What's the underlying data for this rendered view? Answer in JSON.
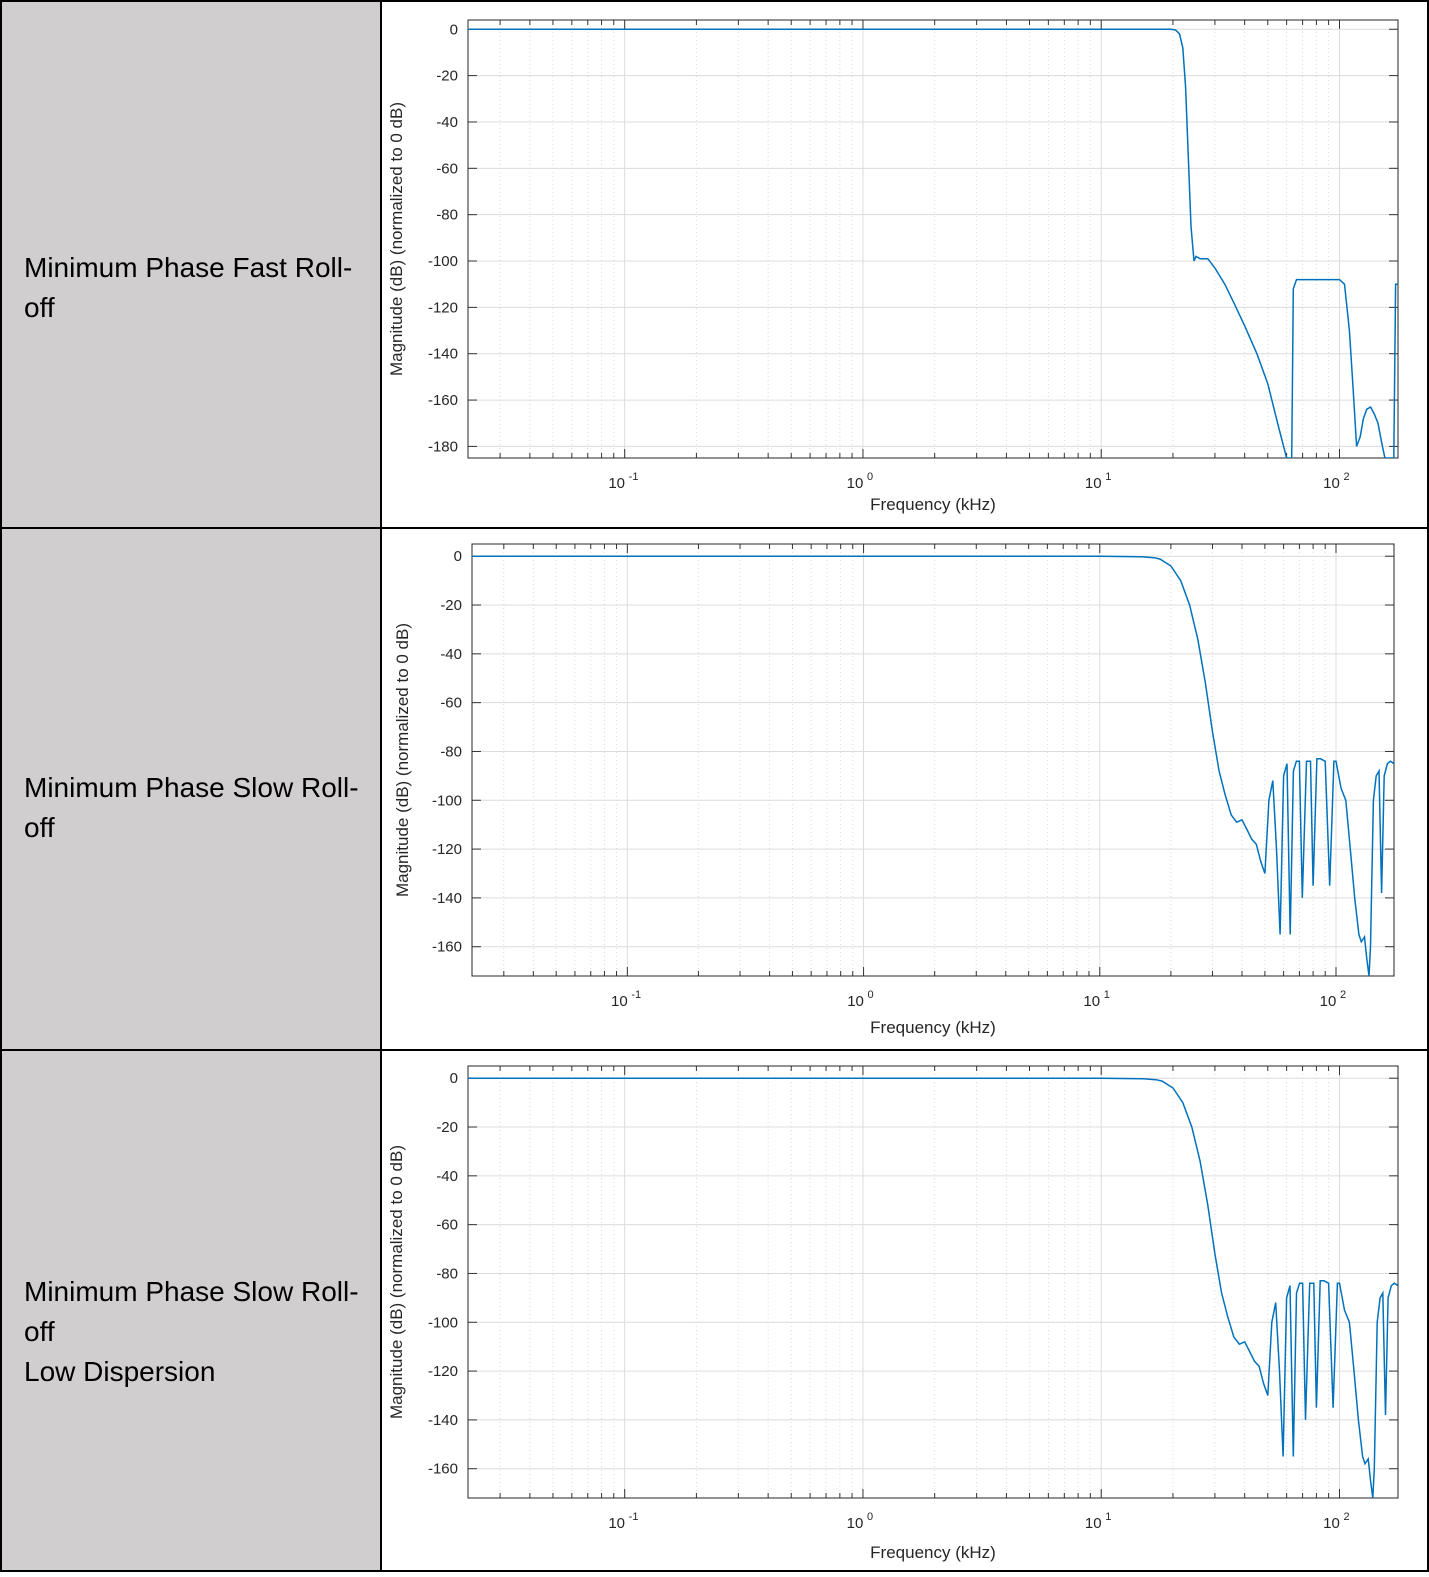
{
  "rows": [
    {
      "label_lines": [
        "Minimum Phase Fast Roll-off"
      ]
    },
    {
      "label_lines": [
        "Minimum Phase Slow Roll-off"
      ]
    },
    {
      "label_lines": [
        "Minimum Phase Slow Roll-off",
        "Low Dispersion"
      ]
    }
  ],
  "chart_data": [
    {
      "type": "line",
      "xlabel": "Frequency (kHz)",
      "ylabel": "Magnitude (dB) (normalized to 0 dB)",
      "xscale": "log",
      "xlim": [
        0.022,
        176
      ],
      "ylim": [
        -185,
        4
      ],
      "yticks": [
        0,
        -20,
        -40,
        -60,
        -80,
        -100,
        -120,
        -140,
        -160,
        -180
      ],
      "xticks": [
        0.1,
        1,
        10,
        100
      ],
      "xtick_labels": [
        {
          "base": "10",
          "exp": "-1"
        },
        {
          "base": "10",
          "exp": "0"
        },
        {
          "base": "10",
          "exp": "1"
        },
        {
          "base": "10",
          "exp": "2"
        }
      ],
      "grid": true,
      "color": "#0072BD",
      "series": [
        {
          "x": [
            0.022,
            1,
            10,
            15,
            18,
            19.5,
            20.5,
            21.3,
            22,
            22.6,
            23.2,
            23.8,
            24.5,
            25,
            26,
            28,
            30,
            33,
            36,
            40,
            45,
            50,
            55,
            60,
            63,
            63.5,
            64,
            66,
            70,
            73,
            76,
            80,
            83,
            87,
            90,
            94,
            97,
            100,
            105,
            110,
            114,
            118,
            122,
            126,
            130,
            135,
            140,
            145,
            150,
            155,
            160,
            165,
            169,
            172,
            176
          ],
          "y": [
            0,
            0,
            0,
            0,
            0,
            0,
            -0.3,
            -2,
            -8,
            -25,
            -55,
            -85,
            -100,
            -98,
            -99,
            -99,
            -103,
            -110,
            -118,
            -128,
            -140,
            -153,
            -170,
            -185,
            -185,
            -150,
            -112,
            -108,
            -108,
            -108,
            -108,
            -108,
            -108,
            -108,
            -108,
            -108,
            -108,
            -108,
            -110,
            -130,
            -155,
            -180,
            -176,
            -168,
            -164,
            -163,
            -166,
            -170,
            -178,
            -185,
            -185,
            -185,
            -185,
            -110,
            -110
          ]
        }
      ]
    },
    {
      "type": "line",
      "xlabel": "Frequency (kHz)",
      "ylabel": "Magnitude (dB) (normalized to 0 dB)",
      "xscale": "log",
      "xlim": [
        0.022,
        176
      ],
      "ylim": [
        -172,
        5
      ],
      "yticks": [
        0,
        -20,
        -40,
        -60,
        -80,
        -100,
        -120,
        -140,
        -160
      ],
      "xticks": [
        0.1,
        1,
        10,
        100
      ],
      "xtick_labels": [
        {
          "base": "10",
          "exp": "-1"
        },
        {
          "base": "10",
          "exp": "0"
        },
        {
          "base": "10",
          "exp": "1"
        },
        {
          "base": "10",
          "exp": "2"
        }
      ],
      "grid": true,
      "color": "#0072BD",
      "series": [
        {
          "x": [
            0.022,
            1,
            10,
            15,
            17,
            18,
            20,
            22,
            24,
            26,
            28,
            30,
            32,
            34,
            35,
            36,
            38,
            40,
            42,
            44,
            46,
            48,
            50,
            52,
            54,
            56,
            58,
            60,
            62,
            64,
            66,
            68,
            70,
            72,
            75,
            78,
            80,
            83,
            86,
            90,
            94,
            98,
            100,
            105,
            110,
            115,
            120,
            125,
            128,
            132,
            135,
            138,
            140,
            144,
            148,
            152,
            156,
            160,
            165,
            170,
            176
          ],
          "y": [
            0,
            0,
            0,
            -0.2,
            -0.6,
            -1.2,
            -4,
            -10,
            -20,
            -34,
            -52,
            -72,
            -88,
            -98,
            -102,
            -106,
            -109,
            -108,
            -112,
            -116,
            -118,
            -125,
            -130,
            -100,
            -92,
            -120,
            -155,
            -90,
            -85,
            -155,
            -88,
            -84,
            -84,
            -140,
            -84,
            -84,
            -135,
            -83,
            -83,
            -84,
            -135,
            -84,
            -84,
            -95,
            -100,
            -120,
            -140,
            -155,
            -158,
            -156,
            -165,
            -172,
            -160,
            -100,
            -90,
            -88,
            -138,
            -90,
            -85,
            -84,
            -85
          ]
        }
      ]
    },
    {
      "type": "line",
      "xlabel": "Frequency (kHz)",
      "ylabel": "Magnitude (dB) (normalized to 0 dB)",
      "xscale": "log",
      "xlim": [
        0.022,
        176
      ],
      "ylim": [
        -172,
        5
      ],
      "yticks": [
        0,
        -20,
        -40,
        -60,
        -80,
        -100,
        -120,
        -140,
        -160
      ],
      "xticks": [
        0.1,
        1,
        10,
        100
      ],
      "xtick_labels": [
        {
          "base": "10",
          "exp": "-1"
        },
        {
          "base": "10",
          "exp": "0"
        },
        {
          "base": "10",
          "exp": "1"
        },
        {
          "base": "10",
          "exp": "2"
        }
      ],
      "grid": true,
      "color": "#0072BD",
      "series": [
        {
          "x": [
            0.022,
            1,
            10,
            15,
            17,
            18,
            20,
            22,
            24,
            26,
            28,
            30,
            32,
            34,
            35,
            36,
            38,
            40,
            42,
            44,
            46,
            48,
            50,
            52,
            54,
            56,
            58,
            60,
            62,
            64,
            66,
            68,
            70,
            72,
            75,
            78,
            80,
            83,
            86,
            90,
            94,
            98,
            100,
            105,
            110,
            115,
            120,
            125,
            128,
            132,
            135,
            138,
            140,
            144,
            148,
            152,
            156,
            160,
            165,
            170,
            176
          ],
          "y": [
            0,
            0,
            0,
            -0.2,
            -0.6,
            -1.2,
            -4,
            -10,
            -20,
            -34,
            -52,
            -72,
            -88,
            -98,
            -102,
            -106,
            -109,
            -108,
            -112,
            -116,
            -118,
            -125,
            -130,
            -100,
            -92,
            -120,
            -155,
            -90,
            -85,
            -155,
            -88,
            -84,
            -84,
            -140,
            -84,
            -84,
            -135,
            -83,
            -83,
            -84,
            -135,
            -84,
            -84,
            -95,
            -100,
            -120,
            -140,
            -155,
            -158,
            -156,
            -165,
            -172,
            -160,
            -100,
            -90,
            -88,
            -138,
            -90,
            -85,
            -84,
            -85
          ]
        }
      ]
    }
  ]
}
